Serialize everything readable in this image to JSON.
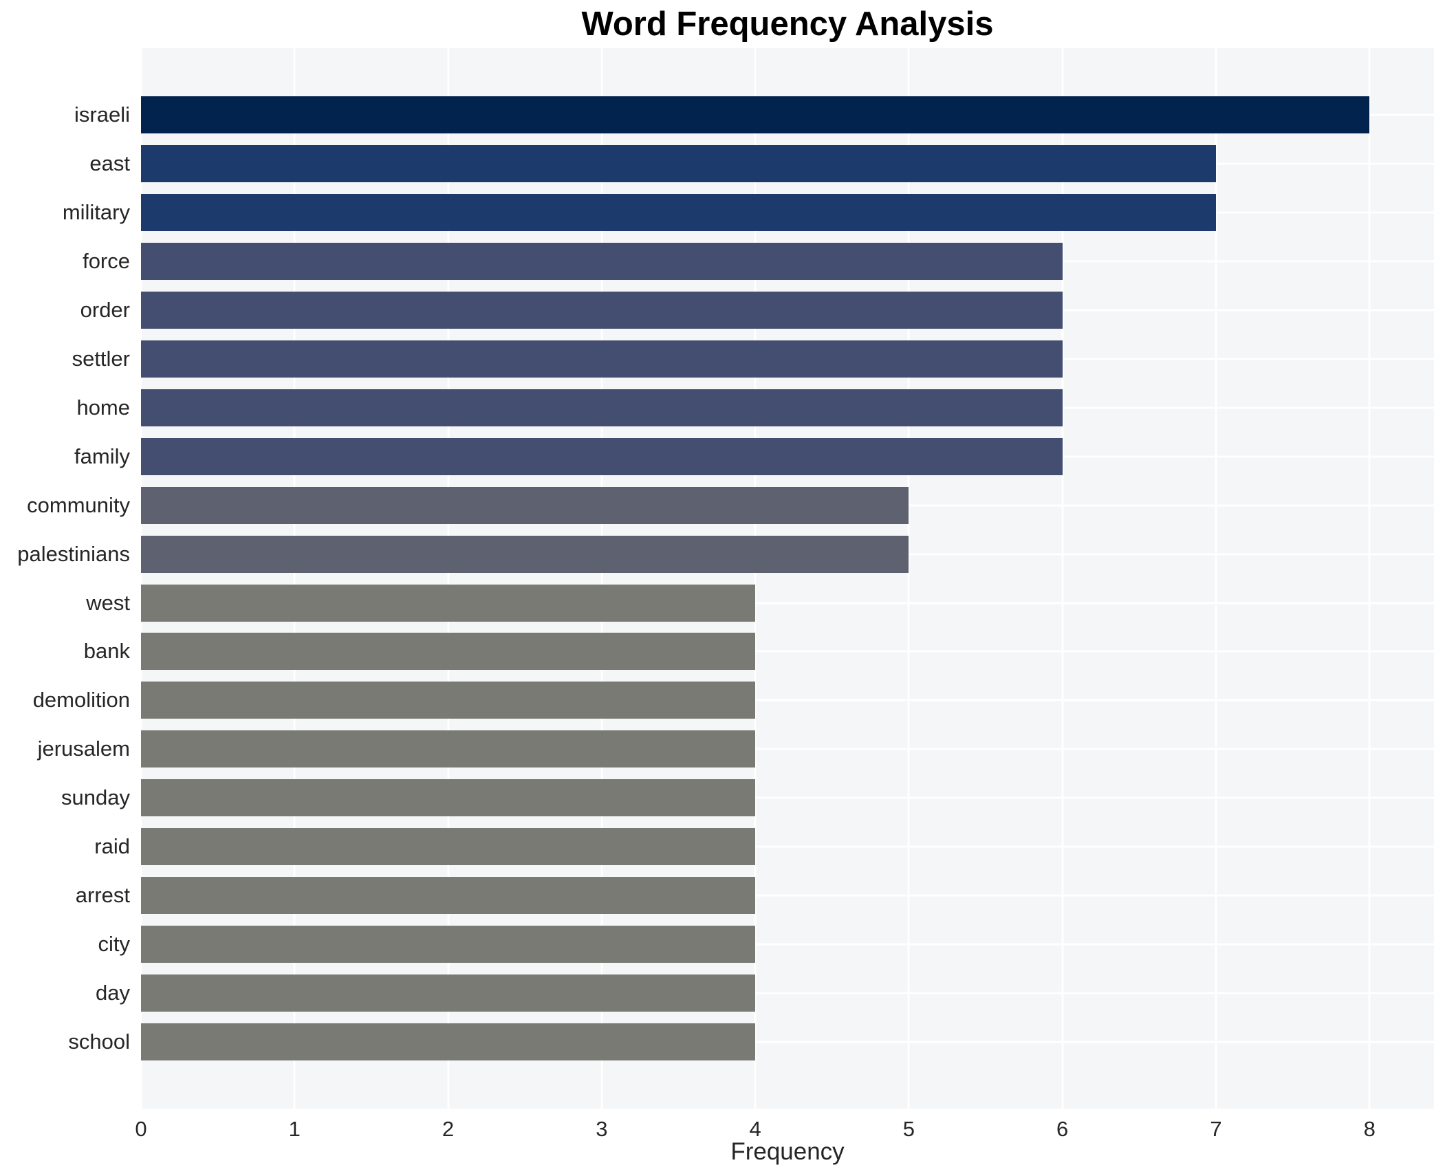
{
  "chart_data": {
    "type": "bar",
    "orientation": "horizontal",
    "title": "Word Frequency Analysis",
    "xlabel": "Frequency",
    "ylabel": "",
    "categories": [
      "israeli",
      "east",
      "military",
      "force",
      "order",
      "settler",
      "home",
      "family",
      "community",
      "palestinians",
      "west",
      "bank",
      "demolition",
      "jerusalem",
      "sunday",
      "raid",
      "arrest",
      "city",
      "day",
      "school"
    ],
    "values": [
      8,
      7,
      7,
      6,
      6,
      6,
      6,
      6,
      5,
      5,
      4,
      4,
      4,
      4,
      4,
      4,
      4,
      4,
      4,
      4
    ],
    "x_ticks": [
      0,
      1,
      2,
      3,
      4,
      5,
      6,
      7,
      8
    ],
    "xlim": [
      0,
      8.42
    ],
    "grid": "on",
    "legend": "none",
    "plot_background": "#f5f6f7",
    "grid_color": "#ffffff",
    "tick_text_color": "#262626",
    "title_color": "#000000",
    "value_colors": {
      "8": "#02234e",
      "7": "#1d3a6d",
      "6": "#434e70",
      "5": "#5e6270",
      "4": "#7a7a75"
    }
  }
}
